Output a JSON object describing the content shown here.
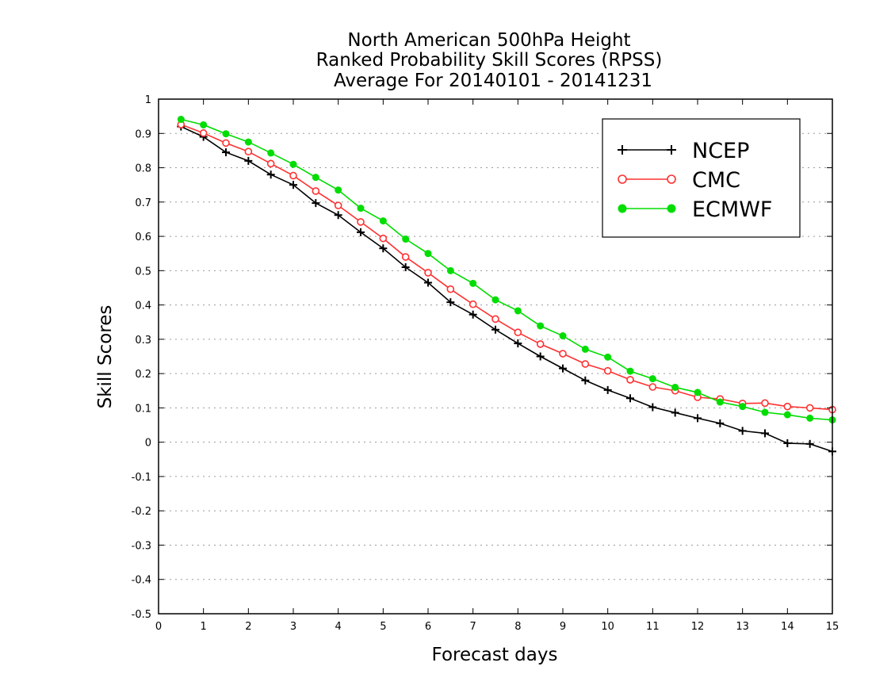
{
  "chart_data": {
    "type": "line",
    "title_lines": [
      "North American 500hPa Height",
      "Ranked Probability Skill Scores (RPSS)",
      "Average For 20140101 - 20141231"
    ],
    "xlabel": "Forecast days",
    "ylabel": "Skill Scores",
    "xlim": [
      0,
      15
    ],
    "ylim": [
      -0.5,
      1
    ],
    "x_ticks": [
      0,
      1,
      2,
      3,
      4,
      5,
      6,
      7,
      8,
      9,
      10,
      11,
      12,
      13,
      14,
      15
    ],
    "y_ticks": [
      -0.5,
      -0.4,
      -0.3,
      -0.2,
      -0.1,
      0,
      0.1,
      0.2,
      0.3,
      0.4,
      0.5,
      0.6,
      0.7,
      0.8,
      0.9,
      1
    ],
    "y_tick_labels": [
      "-0.5",
      "-0.4",
      "-0.3",
      "-0.2",
      "-0.1",
      "0",
      "0.1",
      "0.2",
      "0.3",
      "0.4",
      "0.5",
      "0.6",
      "0.7",
      "0.8",
      "0.9",
      "1"
    ],
    "y_grid": "dotted",
    "legend_position": "top-right",
    "x": [
      0.5,
      1.0,
      1.5,
      2.0,
      2.5,
      3.0,
      3.5,
      4.0,
      4.5,
      5.0,
      5.5,
      6.0,
      6.5,
      7.0,
      7.5,
      8.0,
      8.5,
      9.0,
      9.5,
      10.0,
      10.5,
      11.0,
      11.5,
      12.0,
      12.5,
      13.0,
      13.5,
      14.0,
      14.5,
      15.0
    ],
    "series": [
      {
        "name": "NCEP",
        "color": "#000000",
        "marker": "plus",
        "values": [
          0.92,
          0.89,
          0.845,
          0.82,
          0.78,
          0.75,
          0.697,
          0.662,
          0.612,
          0.565,
          0.51,
          0.465,
          0.408,
          0.372,
          0.328,
          0.288,
          0.25,
          0.215,
          0.18,
          0.152,
          0.128,
          0.102,
          0.086,
          0.07,
          0.055,
          0.033,
          0.026,
          -0.003,
          -0.005,
          -0.027
        ]
      },
      {
        "name": "CMC",
        "color": "#ff3030",
        "marker": "open-circle",
        "values": [
          0.926,
          0.901,
          0.872,
          0.847,
          0.812,
          0.777,
          0.732,
          0.69,
          0.642,
          0.594,
          0.54,
          0.494,
          0.446,
          0.402,
          0.359,
          0.32,
          0.286,
          0.258,
          0.228,
          0.208,
          0.182,
          0.161,
          0.15,
          0.131,
          0.126,
          0.113,
          0.114,
          0.104,
          0.1,
          0.095
        ]
      },
      {
        "name": "ECMWF",
        "color": "#00dd00",
        "marker": "filled-circle",
        "values": [
          0.941,
          0.925,
          0.899,
          0.875,
          0.843,
          0.81,
          0.772,
          0.735,
          0.682,
          0.645,
          0.592,
          0.55,
          0.5,
          0.463,
          0.415,
          0.383,
          0.339,
          0.31,
          0.271,
          0.248,
          0.207,
          0.185,
          0.16,
          0.145,
          0.117,
          0.104,
          0.087,
          0.08,
          0.07,
          0.065
        ]
      }
    ]
  }
}
